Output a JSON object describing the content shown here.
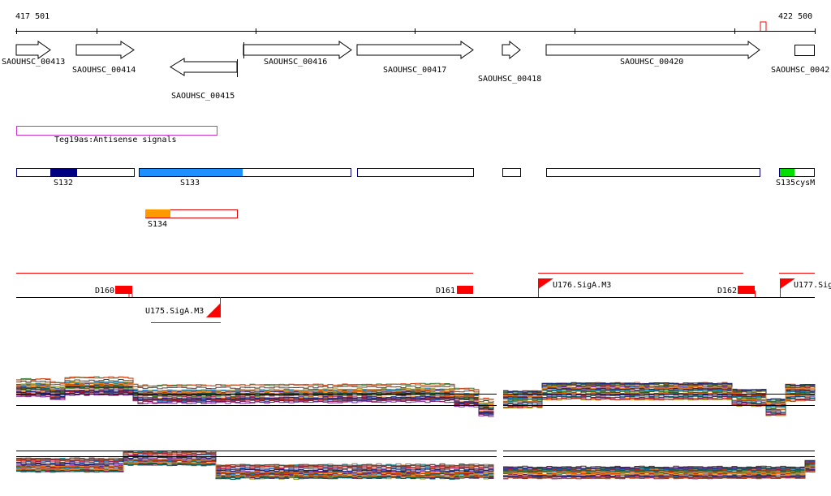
{
  "ruler": {
    "start_label": "417 501",
    "end_label": "422 500"
  },
  "genes": [
    {
      "label": "SAOUHSC_00413",
      "strand": "+"
    },
    {
      "label": "SAOUHSC_00414",
      "strand": "+"
    },
    {
      "label": "SAOUHSC_00415",
      "strand": "-"
    },
    {
      "label": "SAOUHSC_00416",
      "strand": "+"
    },
    {
      "label": "SAOUHSC_00417",
      "strand": "+"
    },
    {
      "label": "SAOUHSC_00418",
      "strand": "+"
    },
    {
      "label": "SAOUHSC_00420",
      "strand": "+"
    },
    {
      "label": "SAOUHSC_0042"
    }
  ],
  "antisense": {
    "label": "Teg19as:Antisense signals",
    "color": "#cc33cc"
  },
  "segments": {
    "labels": [
      "S132",
      "S133",
      "S135cysM"
    ],
    "s134_label": "S134",
    "colors": {
      "outline": "#000080",
      "dark": "#000080",
      "light": "#1e90ff",
      "green": "#00dd00",
      "orange": "#ff9900",
      "red": "#dd0000"
    }
  },
  "features": {
    "labels": [
      "D160",
      "D161",
      "D162",
      "U176.SigA.M3",
      "U177.Sig",
      "U175.SigA.M3"
    ],
    "color": "#ff0000"
  },
  "expression": {
    "series_count": 30
  }
}
